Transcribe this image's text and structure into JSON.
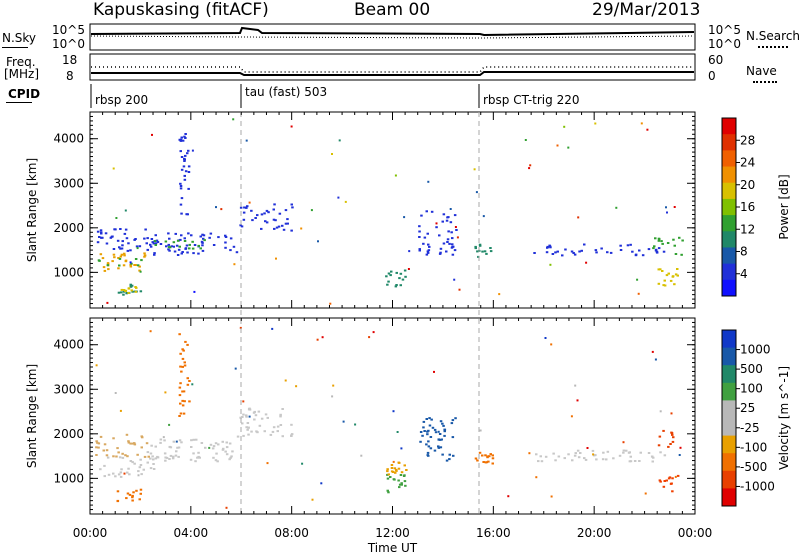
{
  "header": {
    "station": "Kapuskasing (fitACF)",
    "beam": "Beam 00",
    "date": "29/Mar/2013"
  },
  "strip_labels": {
    "nsky": "N.Sky",
    "nsky_top": "10^5",
    "nsky_bottom": "10^0",
    "nsearch": "N.Search",
    "nsearch_top": "10^5",
    "nsearch_bottom": "10^0",
    "freq_line1": "Freq.",
    "freq_line2": "[MHz]",
    "freq_top": "18",
    "freq_bottom": "8",
    "nave": "Nave",
    "nave_top": "60",
    "nave_bottom": "0",
    "cpid": "CPID"
  },
  "cpid_segments": [
    {
      "name": "rbsp 200",
      "start_hour": 0
    },
    {
      "name": "tau (fast) 503",
      "start_hour": 6
    },
    {
      "name": "rbsp CT-trig 220",
      "start_hour": 15.5
    }
  ],
  "chart_data": [
    {
      "type": "heatmap",
      "panel": "power",
      "ylabel": "Slant Range [km]",
      "colorbar_label": "Power [dB]",
      "colorbar_ticks": [
        "28",
        "24",
        "20",
        "16",
        "12",
        "8",
        "4"
      ],
      "colorbar_colors": [
        "#e00000",
        "#e03000",
        "#f06000",
        "#f09000",
        "#d8c000",
        "#80c000",
        "#30a030",
        "#208868",
        "#1858a8",
        "#2030d8",
        "#1010ff"
      ],
      "y_ticks": [
        1000,
        2000,
        3000,
        4000
      ],
      "ylim": [
        200,
        4600
      ],
      "xlim": [
        0,
        24
      ],
      "blobs": [
        {
          "x0": 0.2,
          "x1": 2.2,
          "y0": 1050,
          "y1": 1450,
          "c": "#e8a000"
        },
        {
          "x0": 0.2,
          "x1": 2.2,
          "y0": 1150,
          "y1": 1350,
          "c": "#30a030"
        },
        {
          "x0": 0.2,
          "x1": 2.5,
          "y0": 1500,
          "y1": 2000,
          "c": "#2030d8"
        },
        {
          "x0": 2.2,
          "x1": 5.8,
          "y0": 1400,
          "y1": 1900,
          "c": "#2030d8"
        },
        {
          "x0": 2.5,
          "x1": 4.5,
          "y0": 1550,
          "y1": 1750,
          "c": "#30a030"
        },
        {
          "x0": 5.8,
          "x1": 8.0,
          "y0": 1950,
          "y1": 2550,
          "c": "#2030d8"
        },
        {
          "x0": 1.0,
          "x1": 2.0,
          "y0": 500,
          "y1": 800,
          "c": "#208868"
        },
        {
          "x0": 1.2,
          "x1": 1.8,
          "y0": 550,
          "y1": 700,
          "c": "#d8c000"
        },
        {
          "x0": 11.7,
          "x1": 12.5,
          "y0": 700,
          "y1": 1100,
          "c": "#208868"
        },
        {
          "x0": 13.0,
          "x1": 14.5,
          "y0": 1400,
          "y1": 2400,
          "c": "#2030d8"
        },
        {
          "x0": 15.2,
          "x1": 16.0,
          "y0": 1350,
          "y1": 1650,
          "c": "#208868"
        },
        {
          "x0": 17.5,
          "x1": 22.8,
          "y0": 1400,
          "y1": 1650,
          "c": "#2030d8"
        },
        {
          "x0": 22.3,
          "x1": 23.5,
          "y0": 1400,
          "y1": 1800,
          "c": "#30a030"
        },
        {
          "x0": 22.5,
          "x1": 23.3,
          "y0": 700,
          "y1": 1100,
          "c": "#d8c000"
        },
        {
          "x0": 3.5,
          "x1": 3.9,
          "y0": 2300,
          "y1": 4300,
          "c": "#2030d8"
        }
      ]
    },
    {
      "type": "heatmap",
      "panel": "velocity",
      "ylabel": "Slant Range [km]",
      "colorbar_label": "Velocity [m s^-1]",
      "colorbar_ticks": [
        "1000",
        "500",
        "100",
        "25",
        "-25",
        "-100",
        "-500",
        "-1000"
      ],
      "colorbar_colors": [
        "#1038c8",
        "#1858a8",
        "#208868",
        "#40a040",
        "#b8b8b8",
        "#b8b8b8",
        "#e8a000",
        "#f07000",
        "#e84000",
        "#e00000"
      ],
      "y_ticks": [
        1000,
        2000,
        3000,
        4000
      ],
      "ylim": [
        200,
        4600
      ],
      "xlim": [
        0,
        24
      ],
      "blobs": [
        {
          "x0": 0.2,
          "x1": 2.5,
          "y0": 1050,
          "y1": 1500,
          "c": "#c8c8c8"
        },
        {
          "x0": 0.2,
          "x1": 2.5,
          "y0": 1500,
          "y1": 2000,
          "c": "#d8a860"
        },
        {
          "x0": 2.2,
          "x1": 5.8,
          "y0": 1400,
          "y1": 1900,
          "c": "#c8c8c8"
        },
        {
          "x0": 5.8,
          "x1": 8.0,
          "y0": 1950,
          "y1": 2600,
          "c": "#c8c8c8"
        },
        {
          "x0": 1.0,
          "x1": 2.0,
          "y0": 500,
          "y1": 800,
          "c": "#f07000"
        },
        {
          "x0": 11.7,
          "x1": 12.5,
          "y0": 700,
          "y1": 1100,
          "c": "#40a040"
        },
        {
          "x0": 11.7,
          "x1": 12.5,
          "y0": 1100,
          "y1": 1400,
          "c": "#e8a000"
        },
        {
          "x0": 13.0,
          "x1": 14.5,
          "y0": 1400,
          "y1": 2400,
          "c": "#1858a8"
        },
        {
          "x0": 15.2,
          "x1": 16.0,
          "y0": 1350,
          "y1": 1600,
          "c": "#f07000"
        },
        {
          "x0": 17.5,
          "x1": 22.8,
          "y0": 1400,
          "y1": 1650,
          "c": "#c8c8c8"
        },
        {
          "x0": 22.5,
          "x1": 23.3,
          "y0": 700,
          "y1": 1100,
          "c": "#f04000"
        },
        {
          "x0": 22.5,
          "x1": 23.3,
          "y0": 1700,
          "y1": 2100,
          "c": "#e84000"
        },
        {
          "x0": 3.5,
          "x1": 3.9,
          "y0": 2300,
          "y1": 4300,
          "c": "#f07000"
        }
      ]
    }
  ],
  "x_axis": {
    "ticks": [
      "00:00",
      "04:00",
      "08:00",
      "12:00",
      "16:00",
      "20:00",
      "00:00"
    ],
    "label": "Time UT"
  }
}
